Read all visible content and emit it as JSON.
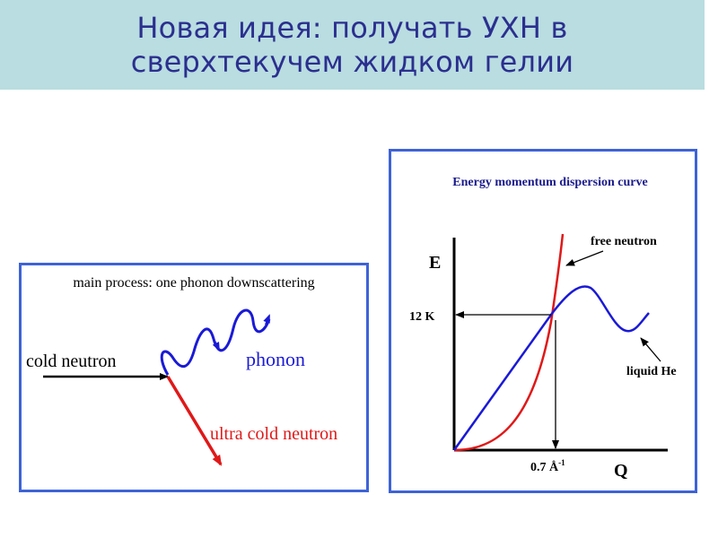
{
  "slide": {
    "title_line1": "Новая идея: получать УХН в",
    "title_line2": "сверхтекучем жидком гелии"
  },
  "left_diagram": {
    "caption": "main process: one phonon downscattering",
    "cold_neutron_label": "cold neutron",
    "phonon_label": "phonon",
    "ucn_label": "ultra cold neutron",
    "colors": {
      "neutron": "#000000",
      "phonon": "#1a1ad6",
      "ucn": "#e01818"
    }
  },
  "right_diagram": {
    "caption": "Energy momentum dispersion curve",
    "e_axis_label": "E",
    "q_axis_label": "Q",
    "energy_marker": "12 K",
    "q_marker_base": "0.7 Å",
    "q_marker_exp": "-1",
    "free_neutron_label": "free neutron",
    "liquid_he_label": "liquid He",
    "colors": {
      "free_neutron": "#e01818",
      "liquid_he": "#1a1ad6",
      "caption": "#1a1a8c"
    }
  }
}
